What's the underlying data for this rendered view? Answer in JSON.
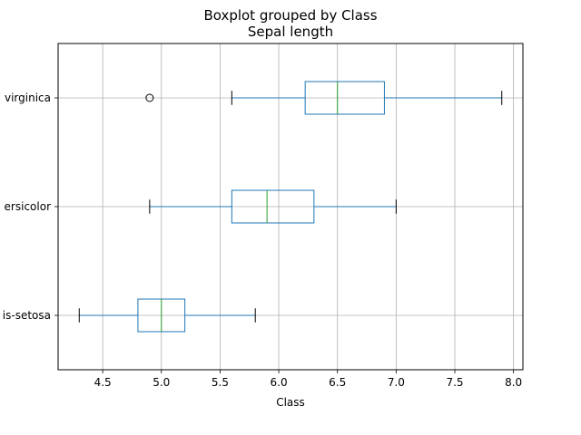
{
  "chart_data": {
    "type": "boxplot",
    "orientation": "horizontal",
    "title": "Boxplot grouped by Class",
    "subtitle": "Sepal length",
    "xlabel": "Class",
    "ylabel": "",
    "xlim": [
      4.12,
      8.08
    ],
    "xticks": [
      4.5,
      5.0,
      5.5,
      6.0,
      6.5,
      7.0,
      7.5,
      8.0
    ],
    "xtick_labels": [
      "4.5",
      "5.0",
      "5.5",
      "6.0",
      "6.5",
      "7.0",
      "7.5",
      "8.0"
    ],
    "grid": true,
    "categories": [
      "Iris-setosa",
      "Iris-versicolor",
      "Iris-virginica"
    ],
    "category_labels_visible": [
      "is-setosa",
      "ersicolor",
      "virginica"
    ],
    "boxes": [
      {
        "category": "Iris-setosa",
        "whisker_low": 4.3,
        "q1": 4.8,
        "median": 5.0,
        "q3": 5.2,
        "whisker_high": 5.8,
        "outliers": []
      },
      {
        "category": "Iris-versicolor",
        "whisker_low": 4.9,
        "q1": 5.6,
        "median": 5.9,
        "q3": 6.3,
        "whisker_high": 7.0,
        "outliers": []
      },
      {
        "category": "Iris-virginica",
        "whisker_low": 5.6,
        "q1": 6.225,
        "median": 6.5,
        "q3": 6.9,
        "whisker_high": 7.9,
        "outliers": [
          4.9
        ]
      }
    ],
    "colors": {
      "box": "#1f77b4",
      "median": "#2ca02c",
      "whisker_cap": "#000000",
      "grid": "#b0b0b0"
    }
  }
}
